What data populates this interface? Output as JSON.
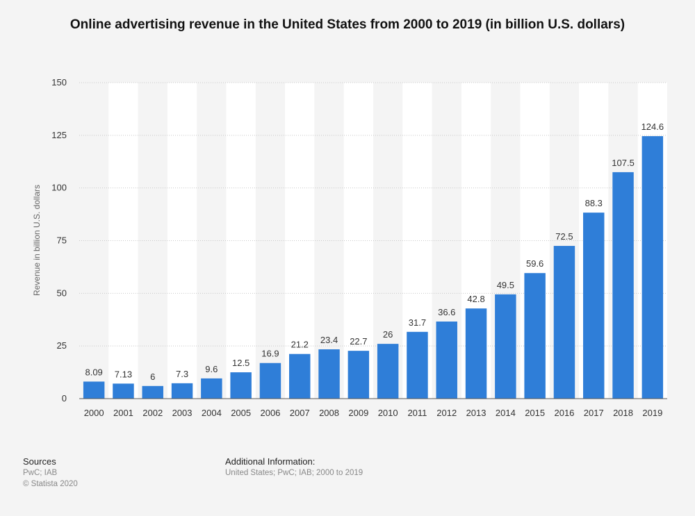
{
  "chart_data": {
    "type": "bar",
    "title": "Online advertising revenue in the United States from 2000 to 2019 (in billion U.S. dollars)",
    "xlabel": "",
    "ylabel": "Revenue in billion U.S. dollars",
    "ylim": [
      0,
      150
    ],
    "yticks": [
      0,
      25,
      50,
      75,
      100,
      125,
      150
    ],
    "grid": true,
    "categories": [
      "2000",
      "2001",
      "2002",
      "2003",
      "2004",
      "2005",
      "2006",
      "2007",
      "2008",
      "2009",
      "2010",
      "2011",
      "2012",
      "2013",
      "2014",
      "2015",
      "2016",
      "2017",
      "2018",
      "2019"
    ],
    "values": [
      8.09,
      7.13,
      6,
      7.3,
      9.6,
      12.5,
      16.9,
      21.2,
      23.4,
      22.7,
      26,
      31.7,
      36.6,
      42.8,
      49.5,
      59.6,
      72.5,
      88.3,
      107.5,
      124.6
    ],
    "value_labels": [
      "8.09",
      "7.13",
      "6",
      "7.3",
      "9.6",
      "12.5",
      "16.9",
      "21.2",
      "23.4",
      "22.7",
      "26",
      "31.7",
      "36.6",
      "42.8",
      "49.5",
      "59.6",
      "72.5",
      "88.3",
      "107.5",
      "124.6"
    ],
    "bar_color": "#2f7ed8"
  },
  "footer": {
    "sources_heading": "Sources",
    "sources_text": "PwC; IAB",
    "copyright": "© Statista 2020",
    "additional_heading": "Additional Information:",
    "additional_text": "United States; PwC; IAB; 2000 to 2019"
  }
}
